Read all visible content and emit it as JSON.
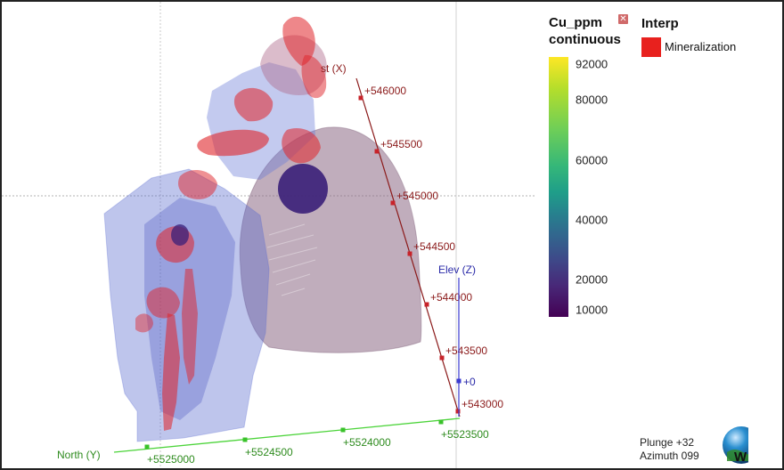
{
  "legend": {
    "colorbar_title_line1": "Cu_ppm",
    "colorbar_title_line2": "continuous",
    "close_icon": "close-icon",
    "ticks": [
      {
        "label": "92000",
        "value": 92000
      },
      {
        "label": "80000",
        "value": 80000
      },
      {
        "label": "60000",
        "value": 60000
      },
      {
        "label": "40000",
        "value": 40000
      },
      {
        "label": "20000",
        "value": 20000
      },
      {
        "label": "10000",
        "value": 10000
      }
    ],
    "colormap": [
      "#440154",
      "#3e4989",
      "#26828e",
      "#35b779",
      "#6ece58",
      "#fde725"
    ]
  },
  "interp": {
    "title": "Interp",
    "items": [
      {
        "label": "Mineralization",
        "color": "#e8211e"
      }
    ]
  },
  "axes": {
    "east": {
      "label": "st (X)",
      "color": "#8b1a1a",
      "ticks": [
        "+546000",
        "+545500",
        "+545000",
        "+544500",
        "+544000",
        "+543500",
        "+543000"
      ]
    },
    "north": {
      "label": "North (Y)",
      "color": "#2e8b1e",
      "ticks": [
        "+5525000",
        "+5524500",
        "+5524000",
        "+5523500"
      ]
    },
    "elev": {
      "label": "Elev (Z)",
      "color": "#2a2aa8",
      "ticks": [
        "+0"
      ]
    }
  },
  "orientation": {
    "plunge": "Plunge +32",
    "azimuth": "Azimuth 099"
  },
  "logo": {
    "icon": "globe-logo-icon"
  }
}
